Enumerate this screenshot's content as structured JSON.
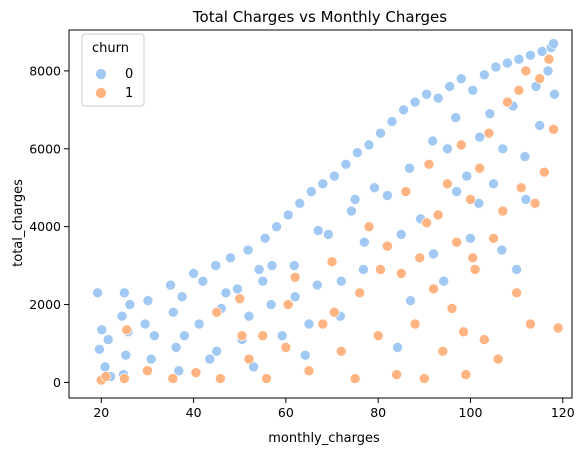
{
  "chart_data": {
    "type": "scatter",
    "title": "Total Charges vs Monthly Charges",
    "xlabel": "monthly_charges",
    "ylabel": "total_charges",
    "xlim": [
      13,
      122
    ],
    "ylim": [
      -400,
      9050
    ],
    "xticks": [
      20,
      40,
      60,
      80,
      100,
      120
    ],
    "yticks": [
      0,
      2000,
      4000,
      6000,
      8000
    ],
    "grid": false,
    "legend": {
      "title": "churn",
      "placement": "top-left",
      "entries": [
        {
          "label": "0",
          "color": "#a1c9f4"
        },
        {
          "label": "1",
          "color": "#ffb482"
        }
      ]
    },
    "series": [
      {
        "name": "0",
        "color": "#a1c9f4",
        "points": [
          [
            19.2,
            2300
          ],
          [
            19.6,
            850
          ],
          [
            20.1,
            1350
          ],
          [
            20.8,
            400
          ],
          [
            21.5,
            1100
          ],
          [
            22.0,
            150
          ],
          [
            24.5,
            1700
          ],
          [
            25.0,
            2300
          ],
          [
            25.3,
            700
          ],
          [
            25.8,
            1300
          ],
          [
            26.2,
            2000
          ],
          [
            24.8,
            200
          ],
          [
            29.5,
            1500
          ],
          [
            30.1,
            2100
          ],
          [
            30.8,
            600
          ],
          [
            31.5,
            1200
          ],
          [
            35.0,
            2500
          ],
          [
            35.6,
            1800
          ],
          [
            36.2,
            900
          ],
          [
            36.8,
            300
          ],
          [
            37.5,
            2200
          ],
          [
            40.0,
            2800
          ],
          [
            41.2,
            1500
          ],
          [
            42.0,
            2600
          ],
          [
            43.5,
            600
          ],
          [
            44.8,
            3000
          ],
          [
            46.0,
            1900
          ],
          [
            48.0,
            3200
          ],
          [
            49.5,
            2400
          ],
          [
            50.5,
            1100
          ],
          [
            51.8,
            3400
          ],
          [
            53.0,
            400
          ],
          [
            54.2,
            2900
          ],
          [
            55.5,
            3700
          ],
          [
            56.8,
            2000
          ],
          [
            58.0,
            4000
          ],
          [
            59.2,
            1200
          ],
          [
            60.5,
            4300
          ],
          [
            61.8,
            3000
          ],
          [
            63.0,
            4600
          ],
          [
            64.2,
            700
          ],
          [
            65.5,
            4900
          ],
          [
            66.8,
            2500
          ],
          [
            68.0,
            5100
          ],
          [
            69.2,
            3800
          ],
          [
            70.5,
            5300
          ],
          [
            71.8,
            1700
          ],
          [
            73.0,
            5600
          ],
          [
            74.2,
            4400
          ],
          [
            75.5,
            5900
          ],
          [
            76.8,
            2900
          ],
          [
            78.0,
            6100
          ],
          [
            79.2,
            5000
          ],
          [
            80.5,
            6400
          ],
          [
            81.8,
            3500
          ],
          [
            83.0,
            6700
          ],
          [
            84.2,
            900
          ],
          [
            85.5,
            7000
          ],
          [
            86.8,
            5500
          ],
          [
            88.0,
            7200
          ],
          [
            89.2,
            4200
          ],
          [
            90.5,
            7400
          ],
          [
            91.8,
            6200
          ],
          [
            93.0,
            7300
          ],
          [
            94.2,
            2600
          ],
          [
            95.5,
            7600
          ],
          [
            96.8,
            6800
          ],
          [
            98.0,
            7800
          ],
          [
            99.2,
            5300
          ],
          [
            100.5,
            7500
          ],
          [
            101.8,
            4600
          ],
          [
            103.0,
            7900
          ],
          [
            104.2,
            6900
          ],
          [
            105.5,
            8100
          ],
          [
            106.8,
            3400
          ],
          [
            108.0,
            8200
          ],
          [
            109.2,
            7100
          ],
          [
            110.5,
            8300
          ],
          [
            111.8,
            5800
          ],
          [
            113.0,
            8400
          ],
          [
            114.2,
            7600
          ],
          [
            115.5,
            8500
          ],
          [
            116.8,
            8000
          ],
          [
            117.5,
            8600
          ],
          [
            118.2,
            7400
          ],
          [
            112.0,
            4700
          ],
          [
            110.0,
            2900
          ],
          [
            107.0,
            6000
          ],
          [
            102.0,
            6300
          ],
          [
            97.0,
            4900
          ],
          [
            92.0,
            3300
          ],
          [
            87.0,
            2100
          ],
          [
            82.0,
            4800
          ],
          [
            77.0,
            3600
          ],
          [
            72.0,
            2600
          ],
          [
            67.0,
            3900
          ],
          [
            62.0,
            2200
          ],
          [
            57.0,
            3000
          ],
          [
            52.0,
            1700
          ],
          [
            47.0,
            2300
          ],
          [
            45.0,
            800
          ],
          [
            65.0,
            1500
          ],
          [
            85.0,
            3800
          ],
          [
            100.0,
            3700
          ],
          [
            115.0,
            6600
          ],
          [
            118.0,
            8700
          ],
          [
            105.0,
            5100
          ],
          [
            95.0,
            6000
          ],
          [
            75.0,
            4700
          ],
          [
            55.0,
            2600
          ],
          [
            38.0,
            1200
          ]
        ]
      },
      {
        "name": "1",
        "color": "#ffb482",
        "points": [
          [
            20.0,
            60
          ],
          [
            21.0,
            150
          ],
          [
            25.5,
            1350
          ],
          [
            25.0,
            100
          ],
          [
            30.0,
            300
          ],
          [
            35.5,
            100
          ],
          [
            40.5,
            250
          ],
          [
            45.0,
            1800
          ],
          [
            45.8,
            100
          ],
          [
            50.0,
            2150
          ],
          [
            52.0,
            600
          ],
          [
            55.0,
            1200
          ],
          [
            55.8,
            100
          ],
          [
            60.0,
            900
          ],
          [
            62.0,
            2700
          ],
          [
            65.0,
            300
          ],
          [
            68.0,
            1500
          ],
          [
            70.0,
            3100
          ],
          [
            72.0,
            800
          ],
          [
            75.0,
            100
          ],
          [
            76.0,
            2300
          ],
          [
            78.0,
            4000
          ],
          [
            80.0,
            1200
          ],
          [
            82.0,
            3500
          ],
          [
            84.0,
            200
          ],
          [
            85.0,
            2800
          ],
          [
            86.0,
            4900
          ],
          [
            88.0,
            1500
          ],
          [
            89.0,
            3200
          ],
          [
            90.0,
            100
          ],
          [
            91.0,
            5600
          ],
          [
            92.0,
            2400
          ],
          [
            93.0,
            4300
          ],
          [
            94.0,
            800
          ],
          [
            95.0,
            5100
          ],
          [
            96.0,
            1900
          ],
          [
            97.0,
            3600
          ],
          [
            98.0,
            6100
          ],
          [
            99.0,
            200
          ],
          [
            100.0,
            4700
          ],
          [
            101.0,
            2900
          ],
          [
            102.0,
            5500
          ],
          [
            103.0,
            1100
          ],
          [
            104.0,
            6400
          ],
          [
            105.0,
            3700
          ],
          [
            106.0,
            600
          ],
          [
            107.0,
            4400
          ],
          [
            108.0,
            7200
          ],
          [
            110.0,
            2300
          ],
          [
            111.0,
            5000
          ],
          [
            112.0,
            8000
          ],
          [
            113.0,
            1500
          ],
          [
            114.0,
            4600
          ],
          [
            115.0,
            7800
          ],
          [
            116.0,
            5400
          ],
          [
            117.0,
            8300
          ],
          [
            118.0,
            6500
          ],
          [
            119.0,
            1400
          ],
          [
            110.5,
            7500
          ],
          [
            100.5,
            3200
          ],
          [
            90.5,
            4100
          ],
          [
            80.5,
            2900
          ],
          [
            70.5,
            1800
          ],
          [
            60.5,
            2000
          ],
          [
            50.5,
            1200
          ],
          [
            98.5,
            1300
          ]
        ]
      }
    ]
  }
}
